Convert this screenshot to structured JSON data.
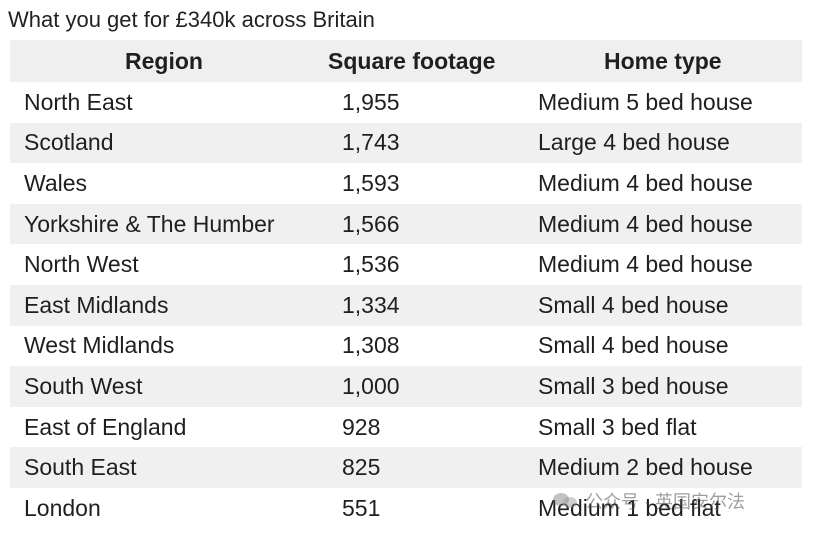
{
  "chart_data": {
    "type": "table",
    "title": "What you get for £340k across Britain",
    "columns": [
      "Region",
      "Square footage",
      "Home type"
    ],
    "rows": [
      [
        "North East",
        "1,955",
        "Medium 5 bed house"
      ],
      [
        "Scotland",
        "1,743",
        "Large 4 bed house"
      ],
      [
        "Wales",
        "1,593",
        "Medium 4 bed house"
      ],
      [
        "Yorkshire & The Humber",
        "1,566",
        "Medium 4 bed house"
      ],
      [
        "North West",
        "1,536",
        "Medium 4 bed house"
      ],
      [
        "East Midlands",
        "1,334",
        "Small 4 bed house"
      ],
      [
        "West Midlands",
        "1,308",
        "Small 4 bed house"
      ],
      [
        "South West",
        "1,000",
        "Small 3 bed house"
      ],
      [
        "East of England",
        "928",
        "Small 3 bed flat"
      ],
      [
        "South East",
        "825",
        "Medium 2 bed house"
      ],
      [
        "London",
        "551",
        "Medium 1 bed flat"
      ]
    ]
  },
  "watermark": {
    "text": "公众号 · 英国安尔法",
    "icon": "wechat-icon"
  }
}
